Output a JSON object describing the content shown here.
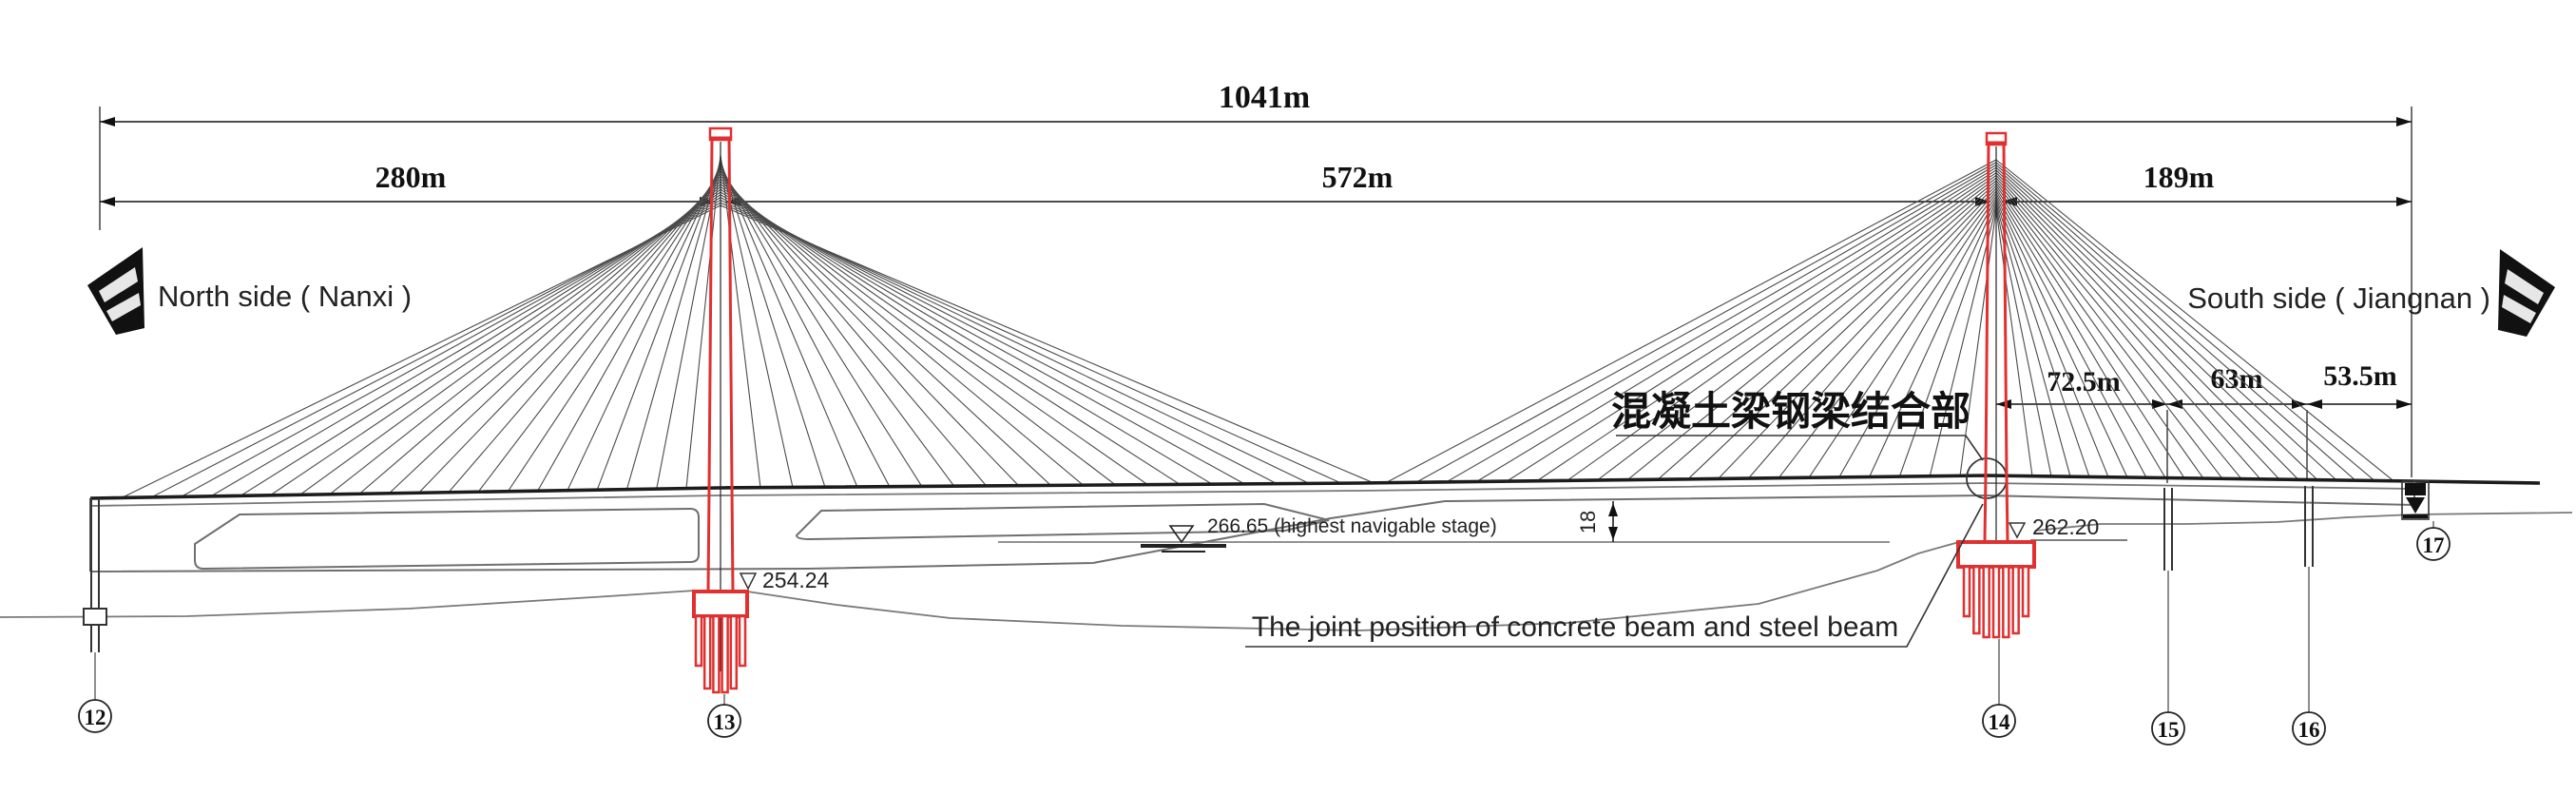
{
  "drawing": {
    "type": "cable-stayed bridge elevation",
    "orientation_left": "North side ( Nanxi )",
    "orientation_right": "South side ( Jiangnan )"
  },
  "dimensions": {
    "total": "1041m",
    "left_span": "280m",
    "main_span": "572m",
    "right_span": "189m",
    "right_sub_span_1": "72.5m",
    "right_sub_span_2": "63m",
    "right_sub_span_3": "53.5m",
    "nav_clearance": "18"
  },
  "annotations": {
    "water_level": "266.65 (highest navigable stage)",
    "ground_left_tower": "254.24",
    "ground_right_tower": "262.20",
    "joint_label_cn": "混凝土梁钢梁结合部",
    "joint_label_en": "The joint position of concrete beam and steel beam"
  },
  "piers": [
    {
      "id": "12"
    },
    {
      "id": "13"
    },
    {
      "id": "14"
    },
    {
      "id": "15"
    },
    {
      "id": "16"
    },
    {
      "id": "17"
    }
  ],
  "colors": {
    "highlight_red": "#e03030",
    "line_gray": "#6f6f6f",
    "line_dark": "#1c1c1c"
  }
}
